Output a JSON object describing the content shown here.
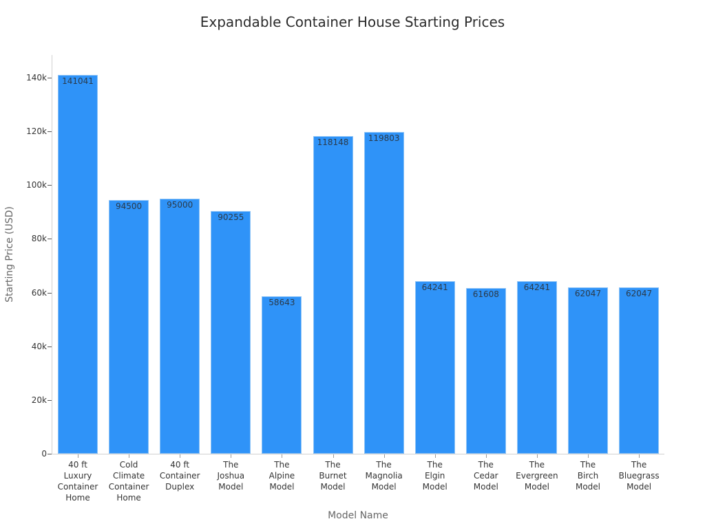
{
  "chart_data": {
    "type": "bar",
    "title": "Expandable Container House Starting Prices",
    "xlabel": "Model Name",
    "ylabel": "Starting Price (USD)",
    "ylim": [
      0,
      148000
    ],
    "grid": false,
    "legend": null,
    "yticks": [
      {
        "value": 0,
        "label": "0"
      },
      {
        "value": 20000,
        "label": "20k"
      },
      {
        "value": 40000,
        "label": "40k"
      },
      {
        "value": 60000,
        "label": "60k"
      },
      {
        "value": 80000,
        "label": "80k"
      },
      {
        "value": 100000,
        "label": "100k"
      },
      {
        "value": 120000,
        "label": "120k"
      },
      {
        "value": 140000,
        "label": "140k"
      }
    ],
    "categories": [
      "40 ft Luxury Container Home",
      "Cold Climate Container Home",
      "40 ft Container Duplex",
      "The Joshua Model",
      "The Alpine Model",
      "The Burnet Model",
      "The Magnolia Model",
      "The Elgin Model",
      "The Cedar Model",
      "The Evergreen Model",
      "The Birch Model",
      "The Bluegrass Model"
    ],
    "category_lines": [
      [
        "40 ft",
        "Luxury",
        "Container",
        "Home"
      ],
      [
        "Cold",
        "Climate",
        "Container",
        "Home"
      ],
      [
        "40 ft",
        "Container",
        "Duplex"
      ],
      [
        "The",
        "Joshua",
        "Model"
      ],
      [
        "The",
        "Alpine",
        "Model"
      ],
      [
        "The",
        "Burnet",
        "Model"
      ],
      [
        "The",
        "Magnolia",
        "Model"
      ],
      [
        "The",
        "Elgin",
        "Model"
      ],
      [
        "The",
        "Cedar",
        "Model"
      ],
      [
        "The",
        "Evergreen",
        "Model"
      ],
      [
        "The",
        "Birch",
        "Model"
      ],
      [
        "The",
        "Bluegrass",
        "Model"
      ]
    ],
    "values": [
      141041,
      94500,
      95000,
      90255,
      58643,
      118148,
      119803,
      64241,
      61608,
      64241,
      62047,
      62047
    ],
    "colors": {
      "bar": "#2f93f8",
      "bar_border": "#8fc4f6",
      "label": "#2a3a4a"
    }
  }
}
